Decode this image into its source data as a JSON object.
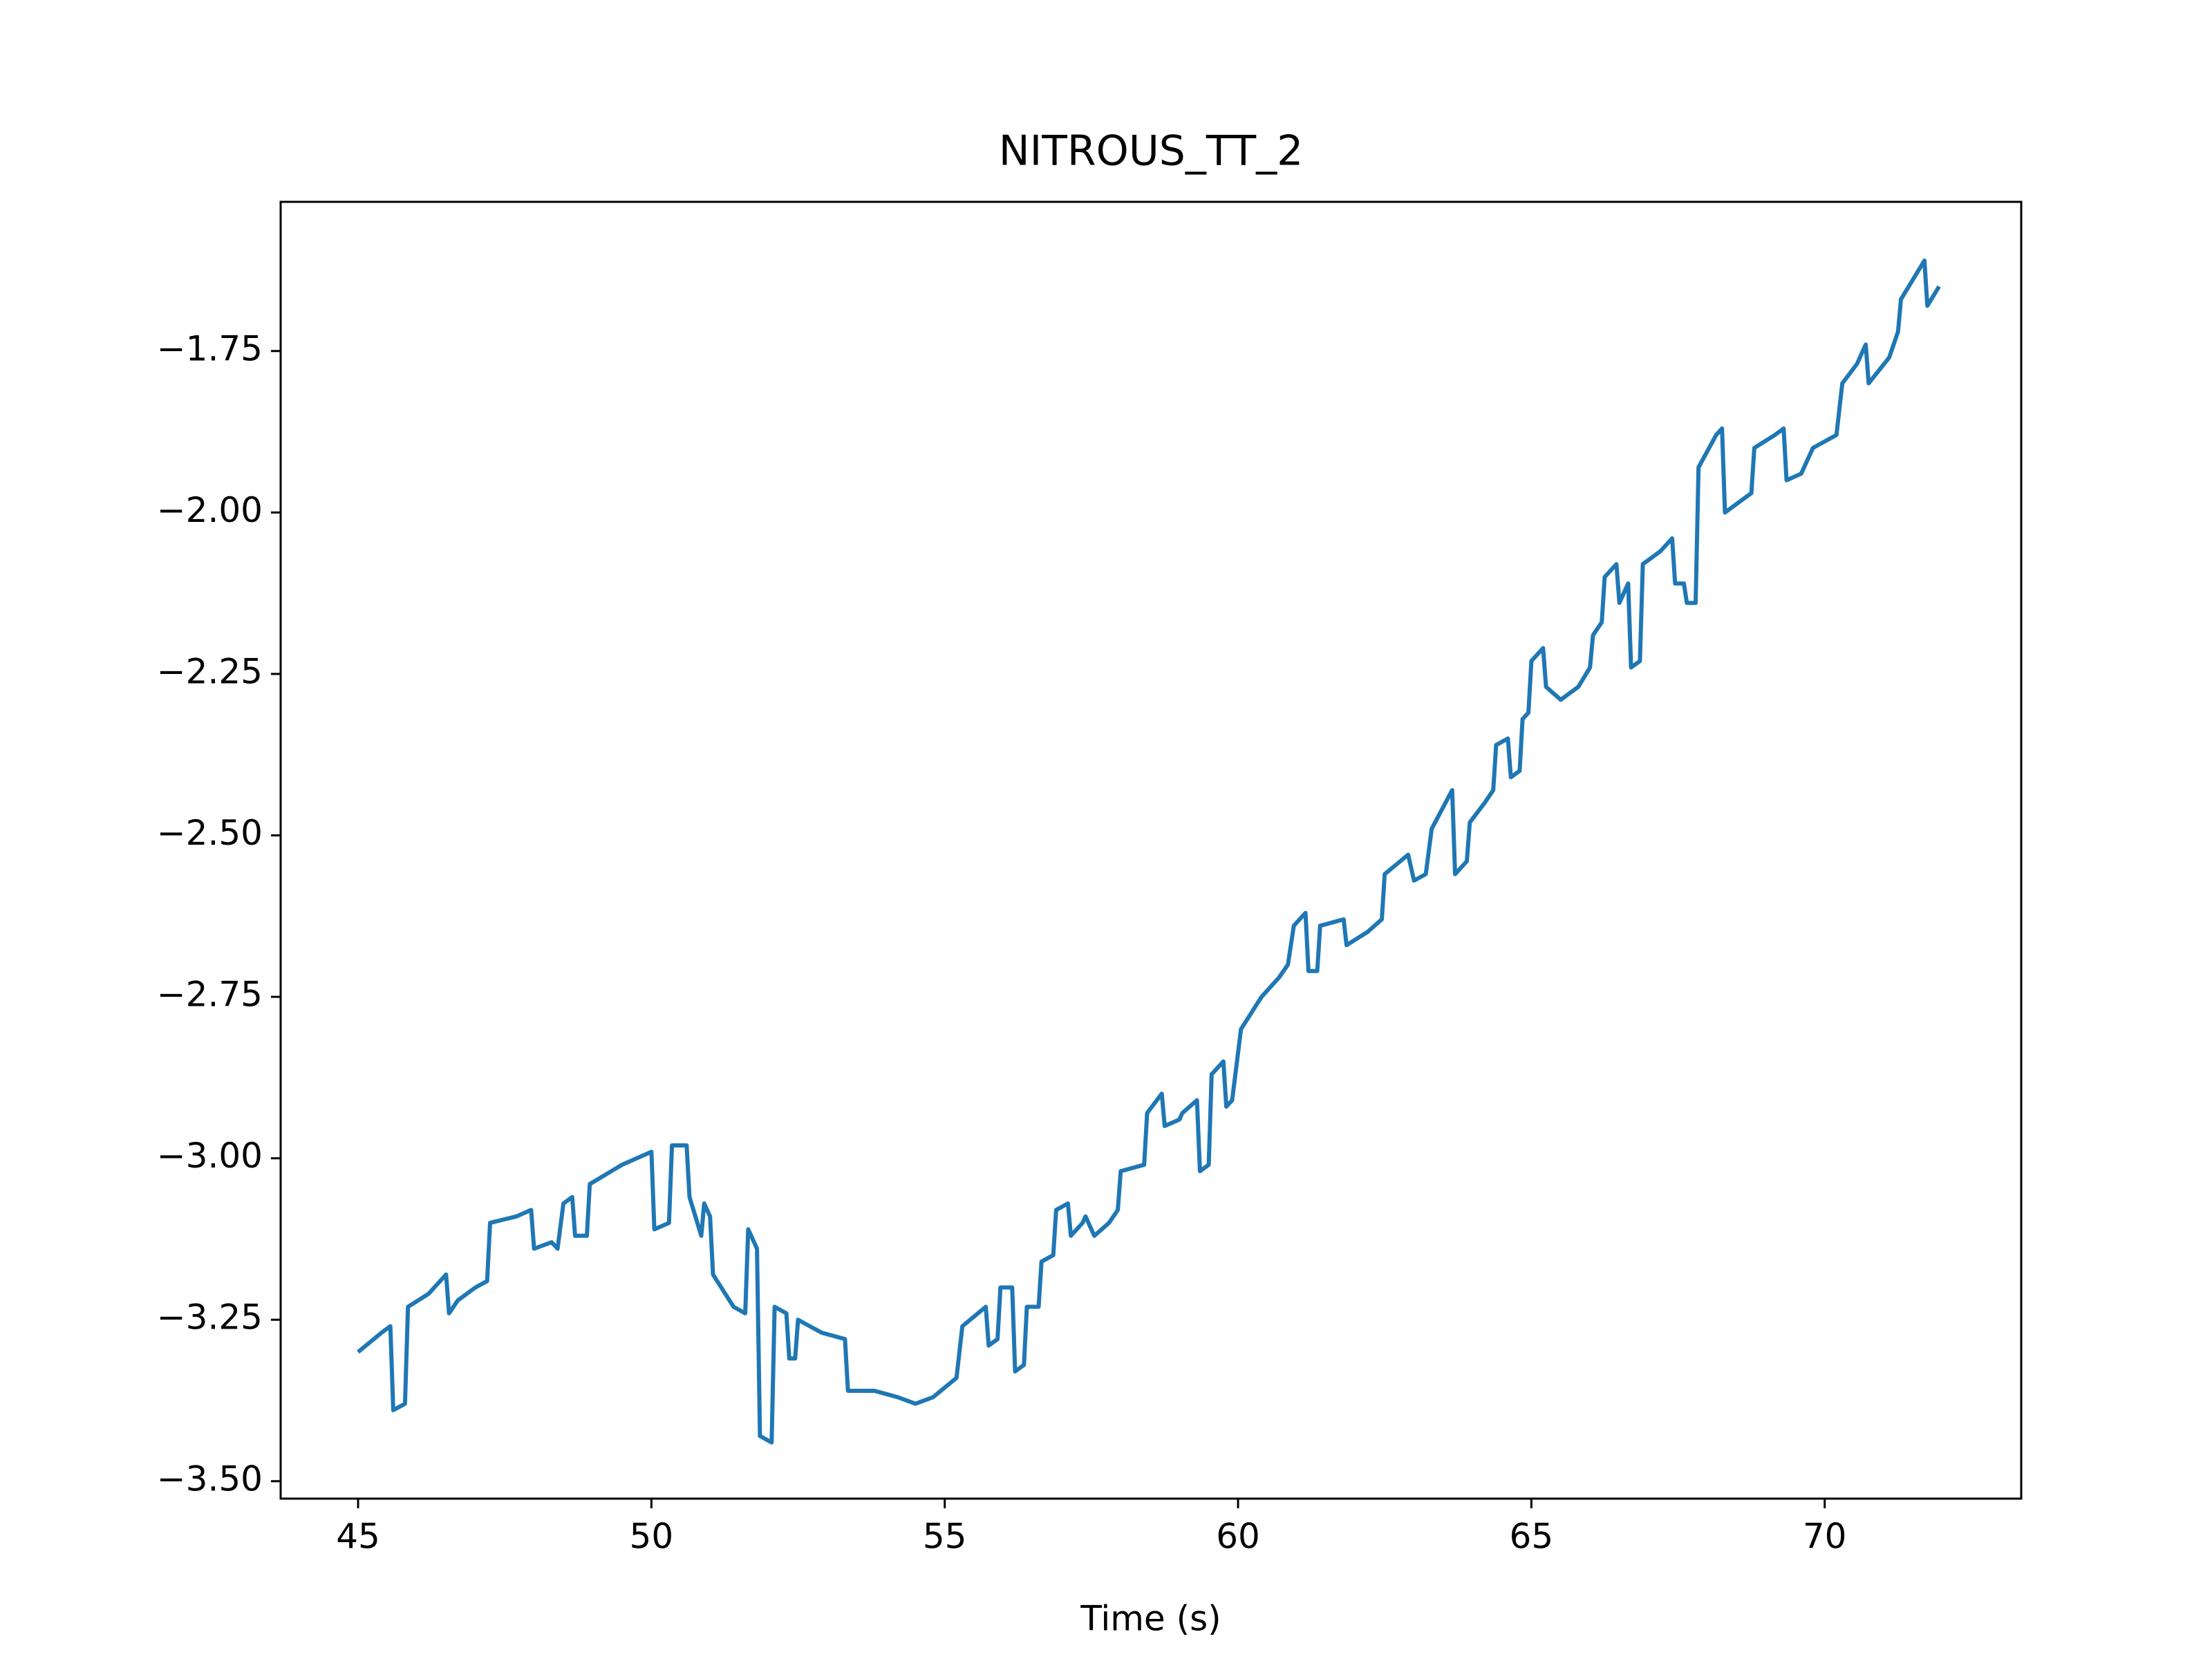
{
  "chart_data": {
    "type": "line",
    "title": "NITROUS_TT_2",
    "x_label": "Time (s)",
    "series": [
      {
        "color": "#1f77b4",
        "x": [
          45.0,
          45.4,
          45.55,
          45.6,
          45.8,
          45.85,
          46.2,
          46.5,
          46.55,
          46.7,
          47.0,
          47.2,
          47.25,
          47.7,
          47.95,
          48.0,
          48.3,
          48.4,
          48.5,
          48.65,
          48.7,
          48.9,
          48.95,
          49.5,
          50.0,
          50.05,
          50.3,
          50.35,
          50.6,
          50.65,
          50.85,
          50.9,
          51.0,
          51.05,
          51.4,
          51.6,
          51.65,
          51.8,
          51.85,
          52.05,
          52.1,
          52.3,
          52.35,
          52.45,
          52.5,
          52.9,
          53.3,
          53.35,
          53.8,
          54.2,
          54.5,
          54.8,
          55.2,
          55.3,
          55.7,
          55.75,
          55.9,
          55.95,
          56.15,
          56.2,
          56.35,
          56.4,
          56.6,
          56.65,
          56.85,
          56.9,
          57.1,
          57.15,
          57.35,
          57.4,
          57.55,
          57.8,
          57.95,
          58.0,
          58.4,
          58.45,
          58.7,
          58.75,
          59.0,
          59.05,
          59.3,
          59.35,
          59.5,
          59.55,
          59.75,
          59.8,
          59.9,
          60.05,
          60.4,
          60.7,
          60.85,
          60.95,
          61.15,
          61.2,
          61.35,
          61.4,
          61.8,
          61.85,
          62.2,
          62.45,
          62.5,
          62.9,
          63.0,
          63.2,
          63.3,
          63.65,
          63.7,
          63.9,
          63.95,
          64.2,
          64.35,
          64.4,
          64.6,
          64.65,
          64.8,
          64.85,
          64.95,
          65.0,
          65.2,
          65.25,
          65.5,
          65.8,
          66.0,
          66.05,
          66.2,
          66.25,
          66.45,
          66.5,
          66.65,
          66.7,
          66.85,
          66.9,
          67.2,
          67.4,
          67.45,
          67.6,
          67.65,
          67.8,
          67.85,
          68.15,
          68.25,
          68.3,
          68.6,
          68.75,
          68.8,
          69.15,
          69.3,
          69.35,
          69.6,
          69.8,
          70.2,
          70.3,
          70.55,
          70.7,
          70.75,
          71.1,
          71.25,
          71.3,
          71.5,
          71.7,
          71.75,
          71.95
        ],
        "values": [
          -3.3,
          -3.27,
          -3.26,
          -3.39,
          -3.38,
          -3.23,
          -3.21,
          -3.18,
          -3.24,
          -3.22,
          -3.2,
          -3.19,
          -3.1,
          -3.09,
          -3.08,
          -3.14,
          -3.13,
          -3.14,
          -3.07,
          -3.06,
          -3.12,
          -3.12,
          -3.04,
          -3.01,
          -2.99,
          -3.11,
          -3.1,
          -2.98,
          -2.98,
          -3.06,
          -3.12,
          -3.07,
          -3.09,
          -3.18,
          -3.23,
          -3.24,
          -3.11,
          -3.14,
          -3.43,
          -3.44,
          -3.23,
          -3.24,
          -3.31,
          -3.31,
          -3.25,
          -3.27,
          -3.28,
          -3.36,
          -3.36,
          -3.37,
          -3.38,
          -3.37,
          -3.34,
          -3.26,
          -3.23,
          -3.29,
          -3.28,
          -3.2,
          -3.2,
          -3.33,
          -3.32,
          -3.23,
          -3.23,
          -3.16,
          -3.15,
          -3.08,
          -3.07,
          -3.12,
          -3.1,
          -3.09,
          -3.12,
          -3.1,
          -3.08,
          -3.02,
          -3.01,
          -2.93,
          -2.9,
          -2.95,
          -2.94,
          -2.93,
          -2.91,
          -3.02,
          -3.01,
          -2.87,
          -2.85,
          -2.92,
          -2.91,
          -2.8,
          -2.75,
          -2.72,
          -2.7,
          -2.64,
          -2.62,
          -2.71,
          -2.71,
          -2.64,
          -2.63,
          -2.67,
          -2.65,
          -2.63,
          -2.56,
          -2.53,
          -2.57,
          -2.56,
          -2.49,
          -2.43,
          -2.56,
          -2.54,
          -2.48,
          -2.45,
          -2.43,
          -2.36,
          -2.35,
          -2.41,
          -2.4,
          -2.32,
          -2.31,
          -2.23,
          -2.21,
          -2.27,
          -2.29,
          -2.27,
          -2.24,
          -2.19,
          -2.17,
          -2.1,
          -2.08,
          -2.14,
          -2.11,
          -2.24,
          -2.23,
          -2.08,
          -2.06,
          -2.04,
          -2.11,
          -2.11,
          -2.14,
          -2.14,
          -1.93,
          -1.88,
          -1.87,
          -2.0,
          -1.98,
          -1.97,
          -1.9,
          -1.88,
          -1.87,
          -1.95,
          -1.94,
          -1.9,
          -1.88,
          -1.8,
          -1.77,
          -1.74,
          -1.8,
          -1.76,
          -1.72,
          -1.67,
          -1.64,
          -1.61,
          -1.68,
          -1.65
        ]
      }
    ],
    "xlim": [
      43.68,
      73.35
    ],
    "ylim": [
      -3.527,
      -1.519
    ],
    "xticks": [
      45,
      50,
      55,
      60,
      65,
      70
    ],
    "yticks": [
      {
        "value": -3.5,
        "label": "−3.50"
      },
      {
        "value": -3.25,
        "label": "−3.25"
      },
      {
        "value": -3.0,
        "label": "−3.00"
      },
      {
        "value": -2.75,
        "label": "−2.75"
      },
      {
        "value": -2.5,
        "label": "−2.50"
      },
      {
        "value": -2.25,
        "label": "−2.25"
      },
      {
        "value": -2.0,
        "label": "−2.00"
      },
      {
        "value": -1.75,
        "label": "−1.75"
      }
    ],
    "grid": false
  }
}
